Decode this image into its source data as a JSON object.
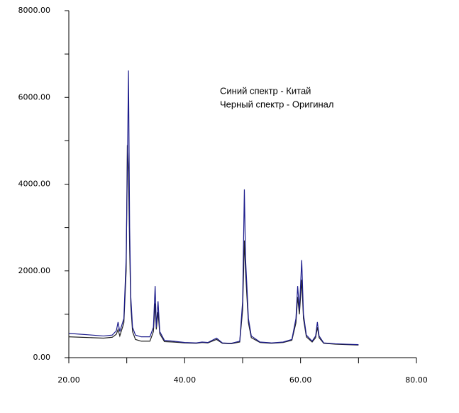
{
  "chart_data": {
    "type": "line",
    "annotations": [
      "Синий спектр - Китай",
      "Черный спектр - Оригинал"
    ],
    "x": [
      20,
      22,
      24,
      26,
      27.5,
      28.2,
      28.5,
      28.8,
      29.5,
      29.9,
      30.1,
      30.3,
      30.5,
      30.7,
      31.0,
      31.5,
      32.5,
      34.0,
      34.6,
      34.9,
      35.1,
      35.4,
      35.7,
      36.5,
      38,
      40,
      42,
      43,
      44,
      45.5,
      46.5,
      48,
      49.5,
      50.0,
      50.3,
      50.5,
      50.7,
      51.0,
      51.5,
      53,
      55,
      57,
      58.5,
      59.2,
      59.5,
      59.8,
      60.2,
      60.5,
      61.0,
      62.0,
      62.6,
      62.9,
      63.2,
      64,
      66,
      68,
      70
    ],
    "series": [
      {
        "color": "#1c1c8c",
        "values": [
          560,
          540,
          520,
          500,
          520,
          620,
          820,
          600,
          900,
          2300,
          4300,
          6620,
          3000,
          1400,
          700,
          520,
          480,
          480,
          700,
          1650,
          700,
          1300,
          600,
          400,
          380,
          350,
          340,
          360,
          350,
          450,
          340,
          330,
          380,
          1300,
          3880,
          2300,
          1750,
          900,
          500,
          360,
          340,
          360,
          420,
          900,
          1650,
          1100,
          2250,
          1000,
          520,
          380,
          500,
          820,
          500,
          340,
          320,
          310,
          300
        ]
      },
      {
        "color": "#222222",
        "values": [
          480,
          470,
          460,
          450,
          470,
          540,
          650,
          500,
          800,
          2000,
          4900,
          4300,
          2500,
          1200,
          600,
          420,
          380,
          380,
          600,
          1250,
          650,
          1050,
          550,
          370,
          360,
          340,
          330,
          350,
          340,
          420,
          330,
          320,
          360,
          1100,
          2700,
          2000,
          1500,
          800,
          460,
          350,
          330,
          350,
          400,
          800,
          1400,
          1000,
          1800,
          900,
          480,
          360,
          460,
          700,
          460,
          330,
          310,
          300,
          290
        ]
      }
    ],
    "xlim": [
      20,
      80
    ],
    "xticks": [
      {
        "value": 20,
        "label": "20.00"
      },
      {
        "value": 40,
        "label": "40.00"
      },
      {
        "value": 60,
        "label": "60.00"
      },
      {
        "value": 80,
        "label": "80.00"
      }
    ],
    "xminorticks": [
      30,
      50,
      70
    ],
    "ylim": [
      0,
      8000
    ],
    "yticks": [
      {
        "value": 0,
        "label": "0.00"
      },
      {
        "value": 2000,
        "label": "2000.00"
      },
      {
        "value": 4000,
        "label": "4000.00"
      },
      {
        "value": 6000,
        "label": "6000.00"
      },
      {
        "value": 8000,
        "label": "8000.00"
      }
    ],
    "yminorticks": [
      1000,
      3000,
      5000,
      7000
    ]
  }
}
